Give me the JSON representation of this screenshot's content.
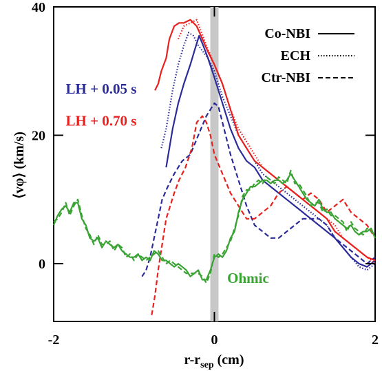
{
  "chart_data": {
    "type": "line",
    "xlabel_main": "r-r",
    "xlabel_sub": "sep",
    "xlabel_unit": " (cm)",
    "ylabel": "⟨vφ⟩ (km/s)",
    "xlim": [
      -2,
      2
    ],
    "ylim": [
      -9,
      40
    ],
    "x_ticks": [
      -2,
      0,
      2
    ],
    "y_ticks": [
      0,
      20,
      40
    ],
    "grid": false,
    "legend_position": "top-right",
    "legend": [
      {
        "label": "Co-NBI",
        "style": "solid"
      },
      {
        "label": "ECH",
        "style": "dotted"
      },
      {
        "label": "Ctr-NBI",
        "style": "dashed"
      }
    ],
    "annotations": [
      {
        "text": "LH + 0.05 s",
        "color": "#2b2b9a",
        "x": -1.85,
        "y": 26.5
      },
      {
        "text": "LH + 0.70 s",
        "color": "#e8201e",
        "x": -1.85,
        "y": 21.5
      },
      {
        "text": "Ohmic",
        "color": "#3aa334",
        "x": 0.16,
        "y": -3
      }
    ],
    "separatrix": {
      "x": 0,
      "color": "#c8c8c8"
    },
    "colors": {
      "lh005": "#2b2b9a",
      "lh070": "#e8201e",
      "ohmic": "#3aa334"
    },
    "series": [
      {
        "group": "lh005",
        "style": "solid",
        "color": "#2b2b9a",
        "x": [
          -0.6,
          -0.52,
          -0.45,
          -0.38,
          -0.3,
          -0.24,
          -0.19,
          -0.14,
          -0.08,
          0.0,
          0.1,
          0.2,
          0.3,
          0.4,
          0.5,
          0.6,
          0.7,
          0.8,
          0.9,
          1.0,
          1.1,
          1.2,
          1.3,
          1.4,
          1.5,
          1.6,
          1.7,
          1.8,
          1.9,
          2.0
        ],
        "y": [
          15,
          21,
          25,
          28,
          31,
          33.5,
          35.5,
          34,
          32,
          29,
          25,
          21,
          18,
          16,
          15,
          13,
          12,
          11,
          10,
          9,
          8,
          7,
          6,
          5,
          4,
          2.5,
          1,
          0,
          -0.5,
          0.5
        ]
      },
      {
        "group": "lh005",
        "style": "dotted",
        "color": "#2b2b9a",
        "x": [
          -0.66,
          -0.6,
          -0.52,
          -0.45,
          -0.38,
          -0.32,
          -0.26,
          -0.2,
          -0.14,
          -0.08,
          0.0,
          0.1,
          0.2,
          0.3,
          0.4,
          0.5,
          0.6,
          0.7,
          0.8,
          0.9,
          1.0,
          1.1,
          1.2,
          1.3,
          1.4,
          1.5,
          1.6,
          1.7,
          1.8,
          1.9,
          2.0
        ],
        "y": [
          18,
          21,
          27,
          31,
          34,
          36,
          35.5,
          34,
          33,
          32,
          30,
          26,
          23,
          20,
          18,
          16,
          14,
          13,
          12,
          11,
          10,
          9,
          8,
          7,
          6,
          4,
          2.5,
          1,
          -0.5,
          -1,
          0
        ]
      },
      {
        "group": "lh005",
        "style": "dashed",
        "color": "#2b2b9a",
        "x": [
          -0.9,
          -0.85,
          -0.8,
          -0.75,
          -0.7,
          -0.65,
          -0.58,
          -0.5,
          -0.4,
          -0.3,
          -0.2,
          -0.1,
          0.0,
          0.05,
          0.1,
          0.2,
          0.3,
          0.4,
          0.5,
          0.6,
          0.7,
          0.8,
          0.9,
          1.0,
          1.1,
          1.2,
          1.3,
          1.4,
          1.5,
          1.6,
          1.7,
          1.8,
          1.9,
          2.0
        ],
        "y": [
          -2,
          -1,
          1,
          4,
          7,
          10,
          12,
          14,
          16,
          17,
          20,
          23,
          25,
          24.5,
          22,
          17,
          13,
          9,
          6,
          5,
          4,
          4,
          5,
          6,
          7,
          7,
          7,
          6,
          4,
          3,
          2,
          1,
          0,
          1
        ]
      },
      {
        "group": "lh070",
        "style": "solid",
        "color": "#e8201e",
        "x": [
          -0.74,
          -0.7,
          -0.66,
          -0.6,
          -0.56,
          -0.5,
          -0.44,
          -0.38,
          -0.3,
          -0.22,
          -0.15,
          -0.08,
          0.0,
          0.1,
          0.2,
          0.3,
          0.4,
          0.5,
          0.6,
          0.7,
          0.8,
          0.9,
          1.0,
          1.1,
          1.2,
          1.3,
          1.4,
          1.5,
          1.6,
          1.7,
          1.8,
          1.9,
          2.0
        ],
        "y": [
          27,
          28,
          30,
          32,
          35,
          37,
          37.5,
          37.5,
          38,
          37,
          35,
          33,
          31,
          28,
          24,
          20,
          18,
          16,
          15,
          14,
          13,
          12,
          11,
          10,
          9,
          8,
          7,
          5,
          4,
          3,
          2,
          1,
          0.5
        ]
      },
      {
        "group": "lh070",
        "style": "dotted",
        "color": "#e8201e",
        "x": [
          -0.45,
          -0.38,
          -0.3,
          -0.22,
          -0.16,
          -0.1,
          0.0,
          0.1,
          0.2,
          0.3,
          0.4,
          0.5,
          0.6,
          0.7,
          0.8,
          0.9,
          1.0,
          1.1,
          1.2,
          1.3,
          1.4,
          1.5,
          1.6,
          1.7,
          1.8,
          1.9,
          2.0
        ],
        "y": [
          35,
          37,
          37.5,
          38,
          36,
          34,
          31,
          28,
          24,
          21,
          19,
          17,
          15,
          14,
          13,
          12,
          11,
          10,
          9,
          8,
          7,
          6,
          4,
          3,
          2,
          1,
          0
        ]
      },
      {
        "group": "lh070",
        "style": "dashed",
        "color": "#e8201e",
        "x": [
          -0.78,
          -0.74,
          -0.7,
          -0.65,
          -0.6,
          -0.55,
          -0.5,
          -0.44,
          -0.36,
          -0.28,
          -0.22,
          -0.15,
          -0.1,
          -0.05,
          0.0,
          0.1,
          0.2,
          0.3,
          0.4,
          0.5,
          0.6,
          0.7,
          0.8,
          0.9,
          1.0,
          1.1,
          1.2,
          1.3,
          1.4,
          1.5,
          1.6,
          1.7,
          1.8,
          1.9,
          2.0
        ],
        "y": [
          -8,
          -5,
          -1,
          3,
          7,
          9,
          11,
          13,
          15,
          18,
          22,
          23,
          22,
          20,
          17,
          14,
          11,
          9,
          7,
          7,
          8,
          9,
          11,
          12,
          11,
          10,
          11,
          10,
          8,
          9,
          10,
          8,
          7,
          6,
          4
        ]
      },
      {
        "group": "ohmic",
        "style": "solid",
        "color": "#3aa334",
        "x": [
          -2.0,
          -1.95,
          -1.9,
          -1.85,
          -1.8,
          -1.75,
          -1.7,
          -1.65,
          -1.6,
          -1.55,
          -1.5,
          -1.45,
          -1.4,
          -1.35,
          -1.3,
          -1.25,
          -1.2,
          -1.15,
          -1.1,
          -1.05,
          -1.0,
          -0.95,
          -0.9,
          -0.85,
          -0.8,
          -0.75,
          -0.7,
          -0.65,
          -0.6,
          -0.55,
          -0.5,
          -0.45,
          -0.4,
          -0.35,
          -0.3,
          -0.25,
          -0.2,
          -0.15,
          -0.1,
          -0.05,
          0.0,
          0.05,
          0.1,
          0.15,
          0.2,
          0.25,
          0.3,
          0.35,
          0.4,
          0.45,
          0.5,
          0.55,
          0.6,
          0.65,
          0.7,
          0.75,
          0.8,
          0.85,
          0.9,
          0.95,
          1.0,
          1.05,
          1.1,
          1.15,
          1.2,
          1.25,
          1.3,
          1.35,
          1.4,
          1.45,
          1.5,
          1.55,
          1.6,
          1.65,
          1.7,
          1.75,
          1.8,
          1.85,
          1.9,
          1.95,
          2.0
        ],
        "y": [
          6,
          7.5,
          8.5,
          9,
          8,
          9.5,
          9.5,
          7,
          6,
          4,
          3.5,
          4,
          2.5,
          3.5,
          3,
          2.5,
          3,
          2,
          1.5,
          1,
          1,
          1.5,
          0.5,
          1,
          0.5,
          2,
          1.5,
          0.5,
          0.5,
          0,
          -0.5,
          0,
          -0.5,
          -1,
          -2,
          -1.5,
          -1,
          -2.5,
          -2.5,
          -1,
          1,
          1.5,
          1,
          2,
          4,
          5,
          8,
          10,
          11,
          12,
          12,
          12.5,
          13,
          13,
          12.5,
          13,
          13,
          12.5,
          13,
          14,
          13,
          12,
          11,
          10,
          9.5,
          9,
          10,
          8.5,
          8,
          8,
          7,
          6.5,
          6,
          5.5,
          6,
          5,
          4.5,
          5,
          5,
          5.5,
          4
        ]
      },
      {
        "group": "ohmic",
        "style": "dashed",
        "color": "#3aa334",
        "x": [
          -2.0,
          -1.95,
          -1.9,
          -1.85,
          -1.8,
          -1.75,
          -1.7,
          -1.65,
          -1.6,
          -1.55,
          -1.5,
          -1.45,
          -1.4,
          -1.35,
          -1.3,
          -1.25,
          -1.2,
          -1.15,
          -1.1,
          -1.05,
          -1.0,
          -0.95,
          -0.9,
          -0.85,
          -0.8,
          -0.75,
          -0.7,
          -0.65,
          -0.6,
          -0.55,
          -0.5,
          -0.45,
          -0.4,
          -0.35,
          -0.3,
          -0.25,
          -0.2,
          -0.15,
          -0.1,
          -0.05,
          0.0,
          0.05,
          0.1,
          0.15,
          0.2,
          0.25,
          0.3,
          0.35,
          0.4,
          0.45,
          0.5,
          0.55,
          0.6,
          0.65,
          0.7,
          0.75,
          0.8,
          0.85,
          0.9,
          0.95,
          1.0,
          1.05,
          1.1,
          1.15,
          1.2,
          1.25,
          1.3,
          1.35,
          1.4,
          1.45,
          1.5,
          1.55,
          1.6,
          1.65,
          1.7,
          1.75,
          1.8,
          1.85,
          1.9,
          1.95,
          2.0
        ],
        "y": [
          6.5,
          7,
          8,
          9.5,
          7.5,
          9,
          10,
          7.5,
          5.5,
          4.5,
          3,
          4.5,
          3,
          3,
          3.5,
          2,
          3,
          2.5,
          1,
          1.5,
          0.5,
          1.5,
          1,
          0.5,
          1,
          1.5,
          2,
          1,
          0,
          0.5,
          0,
          -0.5,
          -1,
          -1.5,
          -1.5,
          -1.5,
          -1.5,
          -2,
          -3,
          -1.5,
          1.5,
          1,
          1.5,
          2.5,
          3.5,
          5.5,
          7.5,
          10.5,
          11.5,
          11.5,
          12.5,
          13,
          12.5,
          13.5,
          13,
          12.5,
          13.5,
          13,
          12.5,
          14.5,
          12.5,
          12.5,
          11.5,
          10.5,
          9,
          9.5,
          9.5,
          8,
          8.5,
          7.5,
          7.5,
          7,
          6.5,
          5,
          6.5,
          5.5,
          5,
          4.5,
          5.5,
          5,
          4.5
        ]
      }
    ]
  }
}
